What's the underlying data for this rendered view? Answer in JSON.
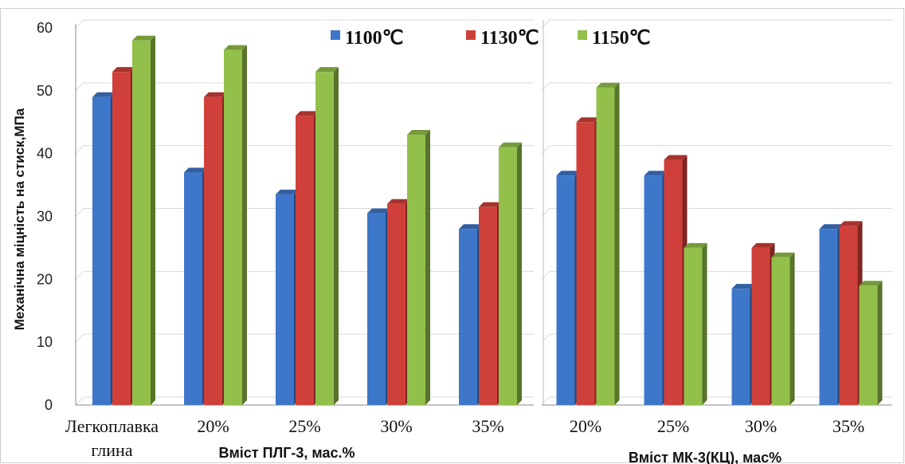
{
  "chart_data": {
    "type": "bar",
    "ylabel": "Механічна міцність на стиск,МПа",
    "ylim": [
      0,
      60
    ],
    "yticks": [
      "0",
      "10",
      "20",
      "30",
      "40",
      "50",
      "60"
    ],
    "grid": true,
    "legend_position": "top-center",
    "panels": [
      {
        "group_label": "Вміст ПЛГ-3, мас.%",
        "categories": [
          [
            "Легкоплавка",
            "глина"
          ],
          [
            "20%"
          ],
          [
            "25%"
          ],
          [
            "30%"
          ],
          [
            "35%"
          ]
        ],
        "series": [
          {
            "name": "1100℃",
            "color": "#3e77c9",
            "values": [
              49,
              37,
              33.5,
              30.5,
              28
            ]
          },
          {
            "name": "1130℃",
            "color": "#d0403a",
            "values": [
              53,
              49,
              46,
              32,
              31.5
            ]
          },
          {
            "name": "1150℃",
            "color": "#93c04a",
            "values": [
              58,
              56.5,
              53,
              43,
              41
            ]
          }
        ]
      },
      {
        "group_label": "Вміст МК-3(КЦ), мас%",
        "categories": [
          [
            "20%"
          ],
          [
            "25%"
          ],
          [
            "30%"
          ],
          [
            "35%"
          ]
        ],
        "series": [
          {
            "name": "1100℃",
            "color": "#3e77c9",
            "values": [
              36.5,
              36.5,
              18.5,
              28
            ]
          },
          {
            "name": "1130℃",
            "color": "#d0403a",
            "values": [
              45,
              39,
              25,
              28.5
            ]
          },
          {
            "name": "1150℃",
            "color": "#93c04a",
            "values": [
              50.5,
              25,
              23.5,
              19
            ]
          }
        ]
      }
    ],
    "legend": [
      "1100℃",
      "1130℃",
      "1150℃"
    ]
  }
}
